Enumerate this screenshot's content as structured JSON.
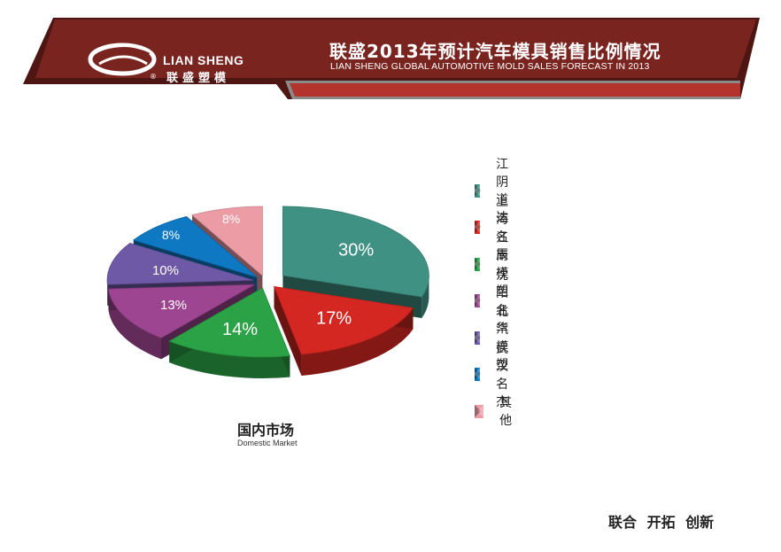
{
  "header": {
    "logo_en": "LIAN SHENG",
    "logo_cn": "联盛塑模",
    "title_cn": "联盛2013年预计汽车模具销售比例情况",
    "title_en": "LIAN SHENG GLOBAL AUTOMOTIVE MOLD SALES FORECAST IN 2013",
    "colors": {
      "banner": "#7a2420",
      "banner_dark": "#4e1613"
    }
  },
  "chart_data": {
    "type": "pie",
    "title": "国内市场",
    "subtitle": "Domestic Market",
    "labels": [
      "江阴道达",
      "上海名辰",
      "江南模塑",
      "沈阳名华",
      "北汽模塑",
      "武汉名杰",
      "其他"
    ],
    "values": [
      30,
      17,
      14,
      13,
      10,
      8,
      8
    ],
    "value_labels": [
      "30%",
      "17%",
      "14%",
      "13%",
      "10%",
      "8%",
      "8%"
    ],
    "colors": [
      "#3f9283",
      "#d42721",
      "#2aa245",
      "#9e4591",
      "#6d59a6",
      "#0f78c2",
      "#ec9ca5"
    ],
    "legend_position": "right",
    "exploded": true
  },
  "footer": {
    "slogan": "联合 开拓 创新"
  }
}
